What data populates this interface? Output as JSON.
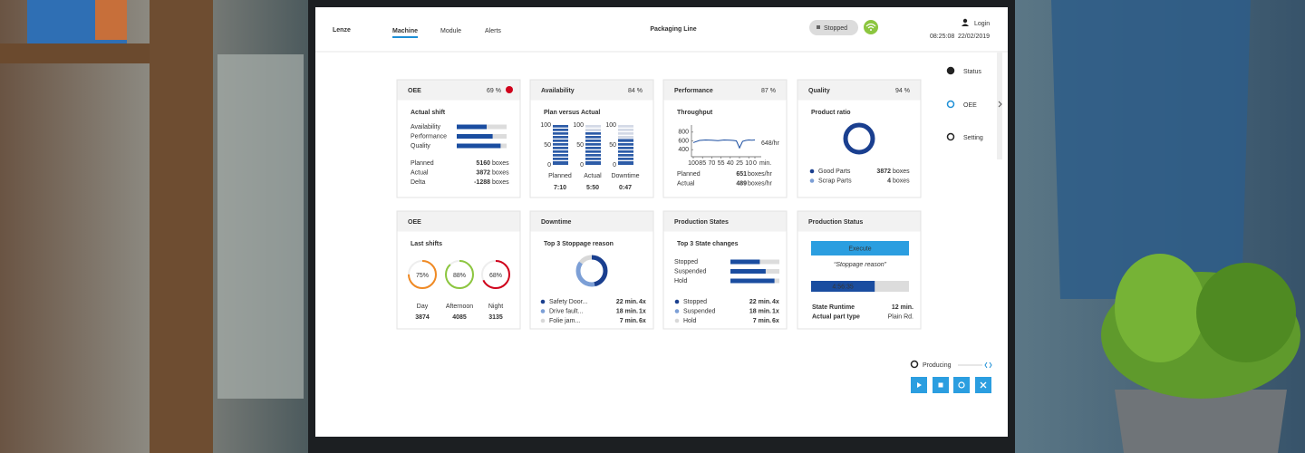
{
  "header": {
    "logo": "Lenze",
    "tabs": [
      "Machine",
      "Module",
      "Alerts"
    ],
    "title": "Packaging Line",
    "status": "Stopped",
    "login": "Login",
    "time": "08:25:08",
    "date": "22/02/2019"
  },
  "side_menu": {
    "items": [
      "Status",
      "OEE",
      "Setting"
    ]
  },
  "cards": {
    "oee_actual": {
      "title": "OEE",
      "value": "69 %",
      "subtitle": "Actual shift",
      "bars": {
        "categories": [
          "Availability",
          "Performance",
          "Quality"
        ],
        "values": [
          60,
          72,
          88
        ],
        "xlim": [
          0,
          100
        ],
        "color": "#1a4da0"
      },
      "rows": [
        {
          "label": "Planned",
          "value": 5160
        },
        {
          "label": "Actual",
          "value": 3872
        },
        {
          "label": "Delta",
          "value": -1288
        }
      ],
      "unit": "boxes"
    },
    "availability": {
      "title": "Availability",
      "value": "84 %",
      "subtitle": "Plan versus Actual",
      "ylim": [
        0,
        100
      ],
      "yticks": [
        100,
        50,
        0
      ],
      "columns": {
        "categories": [
          "Planned",
          "Actual",
          "Downtime"
        ],
        "values": [
          100,
          85,
          65
        ],
        "times": [
          "7:10",
          "5:50",
          "0:47"
        ],
        "color": "#1a4da0"
      }
    },
    "performance": {
      "title": "Performance",
      "value": "87 %",
      "subtitle": "Throughput",
      "chart": {
        "type": "line",
        "x": [
          100,
          90,
          80,
          70,
          60,
          50,
          40,
          35,
          30,
          25,
          20,
          15,
          10,
          5,
          0
        ],
        "values": [
          560,
          610,
          620,
          615,
          605,
          620,
          615,
          610,
          600,
          440,
          590,
          610,
          620,
          615,
          620
        ],
        "xlim": [
          100,
          0
        ],
        "ylim": [
          300,
          900
        ],
        "xticks": [
          100,
          85,
          70,
          55,
          40,
          25,
          10,
          0
        ],
        "yticks": [
          800,
          600,
          400
        ],
        "x_unit": "min.",
        "color": "#1a4da0",
        "current": "648/hr"
      },
      "rows": [
        {
          "label": "Planned",
          "value": 651
        },
        {
          "label": "Actual",
          "value": 489
        }
      ],
      "unit": "boxes/hr"
    },
    "quality": {
      "title": "Quality",
      "value": "94 %",
      "subtitle": "Product ratio",
      "categories": [
        "Good Parts",
        "Scrap Parts"
      ],
      "values": [
        3872,
        4
      ],
      "unit": "boxes",
      "colors": [
        "#1a3f8f",
        "#7c9fd6"
      ]
    },
    "oee_shifts": {
      "title": "OEE",
      "subtitle": "Last shifts",
      "categories": [
        "Day",
        "Afternoon",
        "Night"
      ],
      "values": [
        75,
        88,
        68
      ],
      "value_labels": [
        "75%",
        "88%",
        "68%"
      ],
      "counts": [
        3874,
        4085,
        3135
      ],
      "colors": [
        "#f08a24",
        "#8cc63f",
        "#d0021b"
      ]
    },
    "downtime": {
      "title": "Downtime",
      "subtitle": "Top 3 Stoppage reason",
      "categories": [
        "Safety Door...",
        "Drive fault...",
        "Folie jam..."
      ],
      "values": [
        22,
        18,
        7
      ],
      "value_labels": [
        "22 min.",
        "18 min.",
        "7 min."
      ],
      "counts": [
        "4x",
        "1x",
        "6x"
      ],
      "colors": [
        "#1a3f8f",
        "#7c9fd6",
        "#d8d8d8"
      ]
    },
    "production_states": {
      "title": "Production States",
      "subtitle": "Top 3 State changes",
      "categories": [
        "Stopped",
        "Suspended",
        "Hold"
      ],
      "bars": {
        "values": [
          60,
          72,
          90
        ],
        "xlim": [
          0,
          100
        ],
        "color": "#1a4da0"
      },
      "values": [
        22,
        18,
        7
      ],
      "value_labels": [
        "22 min.",
        "18 min.",
        "7 min."
      ],
      "counts": [
        "4x",
        "1x",
        "6x"
      ],
      "colors": [
        "#1a3f8f",
        "#7c9fd6",
        "#d8d8d8"
      ]
    },
    "production_status": {
      "title": "Production Status",
      "button": "Execute",
      "reason": "“Stoppage reason”",
      "progress": {
        "label": "4:56:35",
        "value": 65,
        "xlim": [
          0,
          100
        ],
        "color": "#1a4da0"
      },
      "rows": [
        {
          "label": "State Runtime",
          "value": "12 min."
        },
        {
          "label": "Actual part type",
          "value": "Plain Rd."
        }
      ]
    }
  },
  "controls": {
    "mode": "Producing"
  }
}
